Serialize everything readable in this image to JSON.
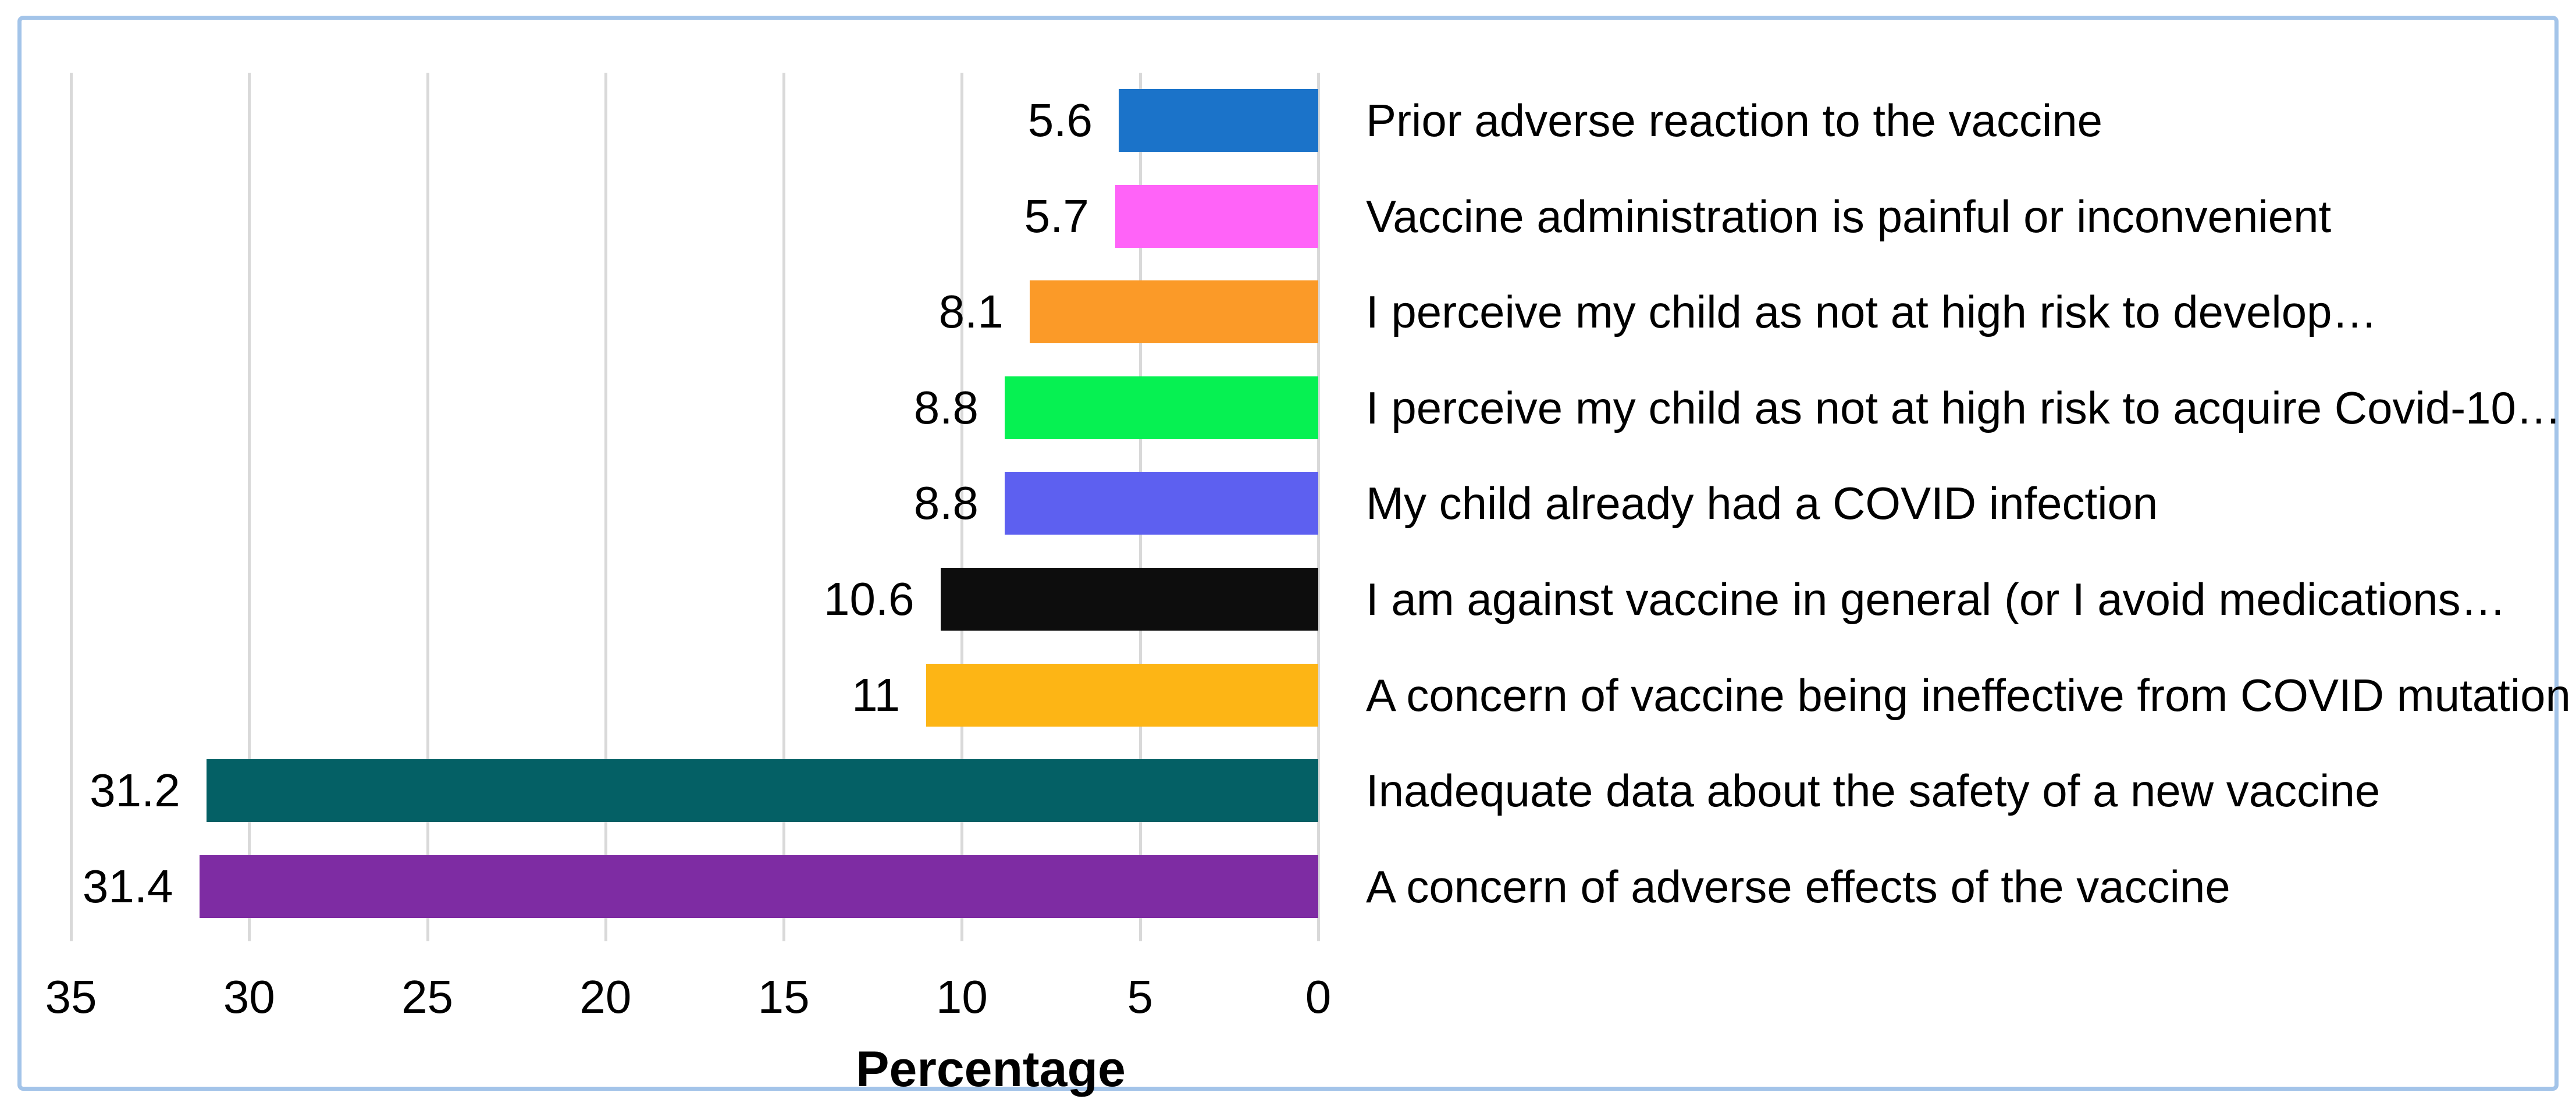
{
  "chart_data": {
    "type": "bar",
    "orientation": "horizontal",
    "xlabel": "Percentage",
    "axis": {
      "min": 0,
      "max": 35,
      "tick_step": 5,
      "ticks": [
        "35",
        "30",
        "25",
        "20",
        "15",
        "10",
        "5",
        "0"
      ],
      "reversed": true,
      "grid": true
    },
    "categories": [
      "Prior adverse reaction to the vaccine",
      "Vaccine administration is painful or inconvenient",
      "I perceive my child as not at high risk to develop…",
      "I perceive my child as not at high risk to acquire Covid-10…",
      "My child already had a COVID infection",
      "I am against vaccine in general (or I avoid medications…",
      "A concern of vaccine being ineffective from COVID mutation",
      "Inadequate data about the safety of a new vaccine",
      "A concern of adverse effects of the vaccine"
    ],
    "values": [
      5.6,
      5.7,
      8.1,
      8.8,
      8.8,
      10.6,
      11,
      31.2,
      31.4
    ],
    "value_labels": [
      "5.6",
      "5.7",
      "8.1",
      "8.8",
      "8.8",
      "10.6",
      "11",
      "31.2",
      "31.4"
    ],
    "bar_colors": [
      "#1B73C9",
      "#FF63F8",
      "#FB9A28",
      "#06F152",
      "#5D60F0",
      "#0D0D0D",
      "#FDB515",
      "#046065",
      "#7E2CA3"
    ],
    "colors": {
      "gridline": "#D9D9D9",
      "frame_border": "#A3C4E9",
      "background": "#ffffff",
      "text": "#000000"
    },
    "legend_position": "none"
  }
}
